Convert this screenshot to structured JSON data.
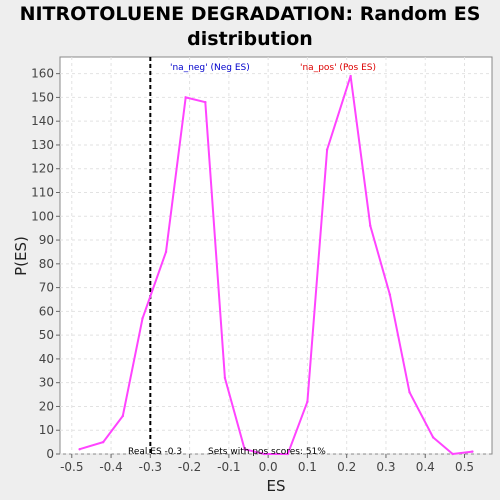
{
  "chart_data": {
    "type": "line",
    "title_line1": "NITROTOLUENE DEGRADATION: Random ES",
    "title_line2": "distribution",
    "xlabel": "ES",
    "ylabel": "P(ES)",
    "xlim": [
      -0.53,
      0.57
    ],
    "ylim": [
      0,
      167
    ],
    "xticks": [
      -0.5,
      -0.4,
      -0.3,
      -0.2,
      -0.1,
      0.0,
      0.1,
      0.2,
      0.3,
      0.4,
      0.5
    ],
    "xtick_labels": [
      "-0.5",
      "-0.4",
      "-0.3",
      "-0.2",
      "-0.1",
      "0.0",
      "0.1",
      "0.2",
      "0.3",
      "0.4",
      "0.5"
    ],
    "yticks": [
      0,
      10,
      20,
      30,
      40,
      50,
      60,
      70,
      80,
      90,
      100,
      110,
      120,
      130,
      140,
      150,
      160
    ],
    "grid": true,
    "series": [
      {
        "color": "#ff44ff",
        "x": [
          -0.48,
          -0.42,
          -0.37,
          -0.32,
          -0.26,
          -0.21,
          -0.16,
          -0.11,
          -0.06,
          -0.01,
          0.05,
          0.1,
          0.15,
          0.21,
          0.26,
          0.31,
          0.36,
          0.42,
          0.47,
          0.52
        ],
        "y": [
          2,
          5,
          16,
          57,
          85,
          150,
          148,
          32,
          2,
          0,
          0,
          22,
          128,
          159,
          96,
          67,
          26,
          7,
          0,
          1
        ]
      }
    ],
    "real_es": -0.3,
    "annotations": {
      "neg_label": "'na_neg' (Neg ES)",
      "pos_label": "'na_pos' (Pos ES)",
      "real_es_label": "Real ES -0.3",
      "pos_scores_label": "Sets with pos scores: 51%"
    },
    "colors": {
      "neg": "#0000cc",
      "pos": "#dd0000",
      "line": "#ff44ff",
      "plot_bg": "#ffffff"
    }
  }
}
